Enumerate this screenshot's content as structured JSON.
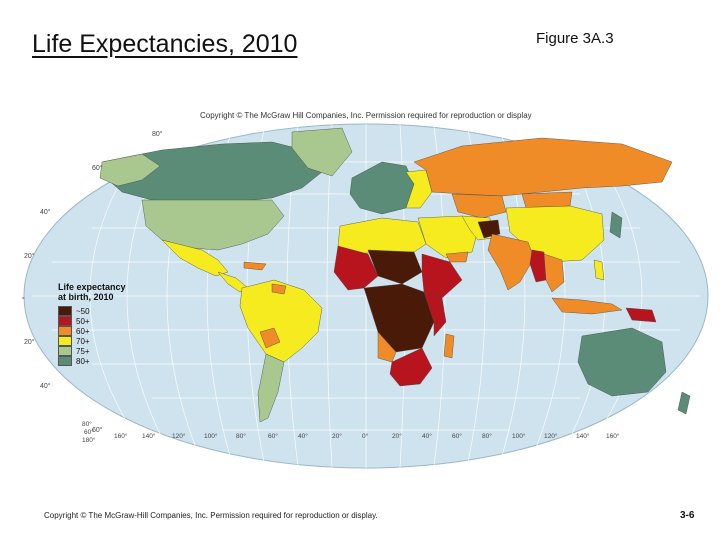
{
  "slide": {
    "title": "Life Expectancies, 2010",
    "figure_label": "Figure 3A.3",
    "map_copyright": "Copyright © The McGraw Hill Companies, Inc. Permission required for reproduction or display",
    "footer_copyright": "Copyright © The McGraw-Hill Companies, Inc. Permission required for reproduction or display.",
    "slide_number": "3-6"
  },
  "legend": {
    "title_line1": "Life expectancy",
    "title_line2": "at birth, 2010",
    "items": [
      {
        "label": "~50",
        "color": "#4a1a08"
      },
      {
        "label": "50+",
        "color": "#b8141e"
      },
      {
        "label": "60+",
        "color": "#f08c28"
      },
      {
        "label": "70+",
        "color": "#f5eb1e"
      },
      {
        "label": "75+",
        "color": "#a8c890"
      },
      {
        "label": "80+",
        "color": "#5a8c78"
      }
    ]
  },
  "map": {
    "ocean_color": "#cfe3ee",
    "lat_labels": [
      "80°",
      "60°",
      "40°",
      "20°",
      "0°",
      "20°",
      "40°",
      "60°"
    ],
    "lon_labels": [
      "160°",
      "140°",
      "120°",
      "100°",
      "80°",
      "60°",
      "40°",
      "20°",
      "0°",
      "20°",
      "40°",
      "60°",
      "80°",
      "100°",
      "120°",
      "140°",
      "160°"
    ],
    "corner_labels": [
      "80°",
      "60°",
      "180°"
    ]
  }
}
